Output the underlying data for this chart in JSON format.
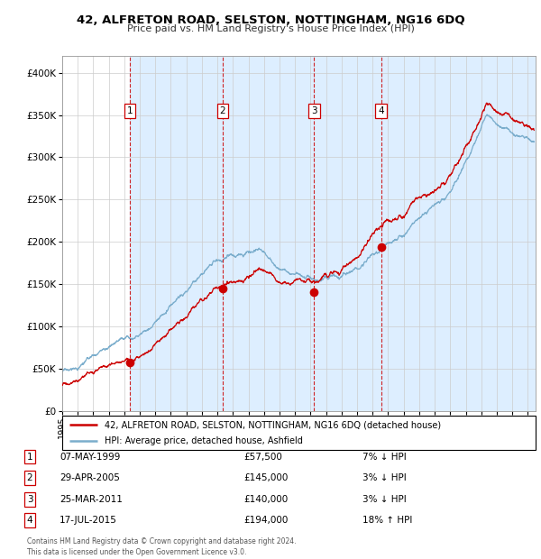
{
  "title": "42, ALFRETON ROAD, SELSTON, NOTTINGHAM, NG16 6DQ",
  "subtitle": "Price paid vs. HM Land Registry's House Price Index (HPI)",
  "legend_line1": "42, ALFRETON ROAD, SELSTON, NOTTINGHAM, NG16 6DQ (detached house)",
  "legend_line2": "HPI: Average price, detached house, Ashfield",
  "table_entries": [
    {
      "num": "1",
      "date": "07-MAY-1999",
      "price": "£57,500",
      "hpi": "7% ↓ HPI"
    },
    {
      "num": "2",
      "date": "29-APR-2005",
      "price": "£145,000",
      "hpi": "3% ↓ HPI"
    },
    {
      "num": "3",
      "date": "25-MAR-2011",
      "price": "£140,000",
      "hpi": "3% ↓ HPI"
    },
    {
      "num": "4",
      "date": "17-JUL-2015",
      "price": "£194,000",
      "hpi": "18% ↑ HPI"
    }
  ],
  "sale_dates_year": [
    1999.37,
    2005.33,
    2011.23,
    2015.54
  ],
  "sale_prices": [
    57500,
    145000,
    140000,
    194000
  ],
  "ylim": [
    0,
    420000
  ],
  "yticks": [
    0,
    50000,
    100000,
    150000,
    200000,
    250000,
    300000,
    350000,
    400000
  ],
  "xlim_start": 1995.0,
  "xlim_end": 2025.5,
  "footer": "Contains HM Land Registry data © Crown copyright and database right 2024.\nThis data is licensed under the Open Government Licence v3.0.",
  "red_color": "#cc0000",
  "blue_color": "#7aadcc",
  "bg_shade_color": "#ddeeff",
  "vline_color": "#cc0000",
  "marker_color": "#cc0000",
  "grid_color": "#cccccc"
}
